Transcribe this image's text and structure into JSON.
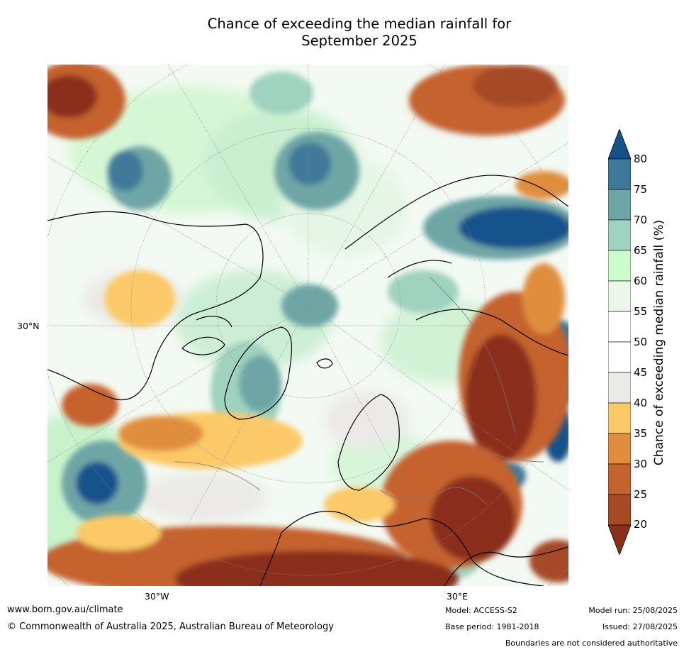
{
  "title": {
    "line1": "Chance of exceeding the median rainfall for",
    "line2": "September 2025"
  },
  "map": {
    "latitude_label": "30°N",
    "longitude_labels": [
      "30°W",
      "30°E"
    ]
  },
  "legend": {
    "title": "Chance of exceeding median rainfall (%)",
    "ticks": [
      "80",
      "75",
      "70",
      "65",
      "60",
      "55",
      "50",
      "45",
      "40",
      "35",
      "30",
      "25",
      "20"
    ],
    "colors": {
      "above80": "#15528c",
      "75_80": "#3f7999",
      "70_75": "#6ea6a6",
      "65_70": "#9fd2bf",
      "60_65": "#ccfccc",
      "55_60": "#eaf7ea",
      "50_55": "#ffffff",
      "45_50": "#ffffff",
      "40_45": "#ebeae6",
      "35_40": "#fcc968",
      "30_35": "#e08e3d",
      "25_30": "#c5622e",
      "20_25": "#a64a26",
      "below20": "#8b2f1b"
    }
  },
  "footer": {
    "website": "www.bom.gov.au/climate",
    "copyright": "© Commonwealth of Australia 2025, Australian Bureau of Meteorology",
    "model": "Model: ACCESS-S2",
    "base_period": "Base period: 1981-2018",
    "model_run": "Model run: 25/08/2025",
    "issued": "Issued: 27/08/2025",
    "disclaimer": "Boundaries are not considered authoritative"
  }
}
